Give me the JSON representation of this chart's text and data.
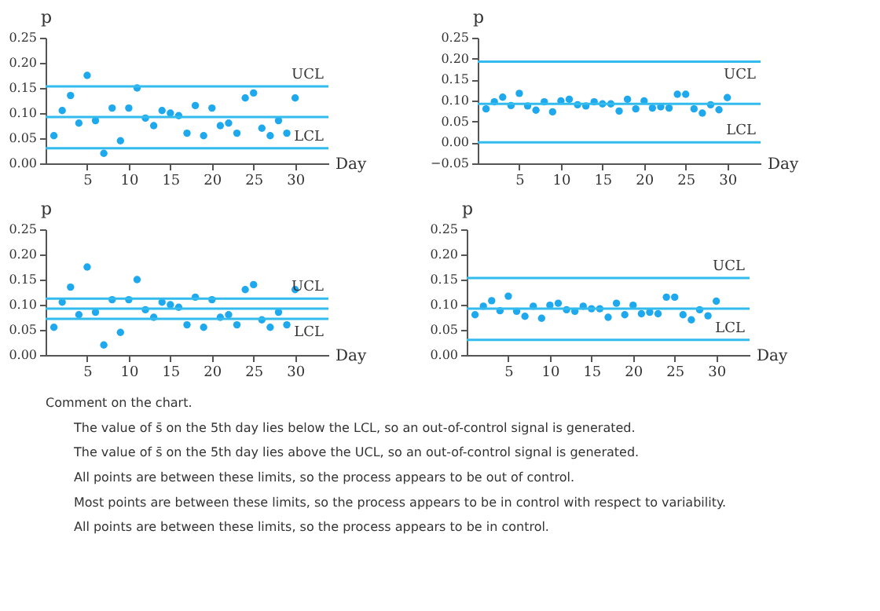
{
  "chart_data": [
    {
      "type": "scatter",
      "xlabel": "Day",
      "ylabel": "p",
      "marker": "circle",
      "grid": false,
      "x": [
        1,
        2,
        3,
        4,
        5,
        6,
        7,
        8,
        9,
        10,
        11,
        12,
        13,
        14,
        15,
        16,
        17,
        18,
        19,
        20,
        21,
        22,
        23,
        24,
        25,
        26,
        27,
        28,
        29,
        30
      ],
      "series": [
        {
          "color": "#1ea8ee",
          "values": [
            0.055,
            0.105,
            0.135,
            0.08,
            0.175,
            0.085,
            0.02,
            0.11,
            0.045,
            0.11,
            0.15,
            0.09,
            0.075,
            0.105,
            0.1,
            0.095,
            0.06,
            0.115,
            0.055,
            0.11,
            0.075,
            0.08,
            0.06,
            0.13,
            0.14,
            0.07,
            0.055,
            0.085,
            0.06,
            0.13
          ]
        }
      ],
      "xlim": [
        0,
        34
      ],
      "xticks": [
        5,
        10,
        15,
        20,
        25,
        30
      ],
      "ylim": [
        0,
        0.25
      ],
      "yticks": [
        {
          "value": 0,
          "label": "0.00"
        },
        {
          "value": 0.05,
          "label": "0.05"
        },
        {
          "value": 0.1,
          "label": "0.10"
        },
        {
          "value": 0.15,
          "label": "0.15"
        },
        {
          "value": 0.2,
          "label": "0.20"
        },
        {
          "value": 0.25,
          "label": "0.25"
        }
      ],
      "ref_lines": [
        {
          "axis": "y",
          "value": 0.153,
          "label": "UCL",
          "color": "#33bbee"
        },
        {
          "axis": "y",
          "value": 0.092,
          "label": null,
          "color": "#33bbee"
        },
        {
          "axis": "y",
          "value": 0.03,
          "label": "LCL",
          "color": "#33bbee"
        }
      ]
    },
    {
      "type": "scatter",
      "xlabel": "Day",
      "ylabel": "p",
      "marker": "circle",
      "grid": false,
      "x": [
        1,
        2,
        3,
        4,
        5,
        6,
        7,
        8,
        9,
        10,
        11,
        12,
        13,
        14,
        15,
        16,
        17,
        18,
        19,
        20,
        21,
        22,
        23,
        24,
        25,
        26,
        27,
        28,
        29,
        30
      ],
      "series": [
        {
          "color": "#1ea8ee",
          "values": [
            0.08,
            0.097,
            0.108,
            0.088,
            0.117,
            0.087,
            0.077,
            0.097,
            0.073,
            0.099,
            0.103,
            0.09,
            0.087,
            0.097,
            0.092,
            0.092,
            0.075,
            0.103,
            0.08,
            0.099,
            0.082,
            0.085,
            0.082,
            0.115,
            0.115,
            0.08,
            0.07,
            0.09,
            0.078,
            0.107
          ]
        }
      ],
      "xlim": [
        0,
        34
      ],
      "xticks": [
        5,
        10,
        15,
        20,
        25,
        30
      ],
      "ylim": [
        -0.05,
        0.25
      ],
      "yticks": [
        {
          "value": -0.05,
          "label": "−0.05"
        },
        {
          "value": 0,
          "label": "0.00"
        },
        {
          "value": 0.05,
          "label": "0.05"
        },
        {
          "value": 0.1,
          "label": "0.10"
        },
        {
          "value": 0.15,
          "label": "0.15"
        },
        {
          "value": 0.2,
          "label": "0.20"
        },
        {
          "value": 0.25,
          "label": "0.25"
        }
      ],
      "ref_lines": [
        {
          "axis": "y",
          "value": 0.193,
          "label": "UCL",
          "color": "#33bbee"
        },
        {
          "axis": "y",
          "value": 0.092,
          "label": null,
          "color": "#33bbee"
        },
        {
          "axis": "y",
          "value": 0.0,
          "label": "LCL",
          "color": "#33bbee"
        }
      ]
    },
    {
      "type": "scatter",
      "xlabel": "Day",
      "ylabel": "p",
      "marker": "circle",
      "grid": false,
      "x": [
        1,
        2,
        3,
        4,
        5,
        6,
        7,
        8,
        9,
        10,
        11,
        12,
        13,
        14,
        15,
        16,
        17,
        18,
        19,
        20,
        21,
        22,
        23,
        24,
        25,
        26,
        27,
        28,
        29,
        30
      ],
      "series": [
        {
          "color": "#1ea8ee",
          "values": [
            0.055,
            0.105,
            0.135,
            0.08,
            0.175,
            0.085,
            0.02,
            0.11,
            0.045,
            0.11,
            0.15,
            0.09,
            0.075,
            0.105,
            0.1,
            0.095,
            0.06,
            0.115,
            0.055,
            0.11,
            0.075,
            0.08,
            0.06,
            0.13,
            0.14,
            0.07,
            0.055,
            0.085,
            0.06,
            0.13
          ]
        }
      ],
      "xlim": [
        0,
        34
      ],
      "xticks": [
        5,
        10,
        15,
        20,
        25,
        30
      ],
      "ylim": [
        0,
        0.25
      ],
      "yticks": [
        {
          "value": 0,
          "label": "0.00"
        },
        {
          "value": 0.05,
          "label": "0.05"
        },
        {
          "value": 0.1,
          "label": "0.10"
        },
        {
          "value": 0.15,
          "label": "0.15"
        },
        {
          "value": 0.2,
          "label": "0.20"
        },
        {
          "value": 0.25,
          "label": "0.25"
        }
      ],
      "ref_lines": [
        {
          "axis": "y",
          "value": 0.112,
          "label": "UCL",
          "color": "#33bbee"
        },
        {
          "axis": "y",
          "value": 0.092,
          "label": null,
          "color": "#33bbee"
        },
        {
          "axis": "y",
          "value": 0.072,
          "label": "LCL",
          "color": "#33bbee"
        }
      ]
    },
    {
      "type": "scatter",
      "xlabel": "Day",
      "ylabel": "p",
      "marker": "circle",
      "grid": false,
      "x": [
        1,
        2,
        3,
        4,
        5,
        6,
        7,
        8,
        9,
        10,
        11,
        12,
        13,
        14,
        15,
        16,
        17,
        18,
        19,
        20,
        21,
        22,
        23,
        24,
        25,
        26,
        27,
        28,
        29,
        30
      ],
      "series": [
        {
          "color": "#1ea8ee",
          "values": [
            0.08,
            0.097,
            0.108,
            0.088,
            0.117,
            0.087,
            0.077,
            0.097,
            0.073,
            0.099,
            0.103,
            0.09,
            0.087,
            0.097,
            0.092,
            0.092,
            0.075,
            0.103,
            0.08,
            0.099,
            0.082,
            0.085,
            0.082,
            0.115,
            0.115,
            0.08,
            0.07,
            0.09,
            0.078,
            0.107
          ]
        }
      ],
      "xlim": [
        0,
        34
      ],
      "xticks": [
        5,
        10,
        15,
        20,
        25,
        30
      ],
      "ylim": [
        0,
        0.25
      ],
      "yticks": [
        {
          "value": 0,
          "label": "0.00"
        },
        {
          "value": 0.05,
          "label": "0.05"
        },
        {
          "value": 0.1,
          "label": "0.10"
        },
        {
          "value": 0.15,
          "label": "0.15"
        },
        {
          "value": 0.2,
          "label": "0.20"
        },
        {
          "value": 0.25,
          "label": "0.25"
        }
      ],
      "ref_lines": [
        {
          "axis": "y",
          "value": 0.153,
          "label": "UCL",
          "color": "#33bbee"
        },
        {
          "axis": "y",
          "value": 0.092,
          "label": null,
          "color": "#33bbee"
        },
        {
          "axis": "y",
          "value": 0.03,
          "label": "LCL",
          "color": "#33bbee"
        }
      ]
    },
    {
      "type": "other",
      "annotations": [
        "Comment on the chart.",
        "The value of s̄ on the 5th day lies below the LCL, so an out-of-control signal is generated.",
        "The value of s̄ on the 5th day lies above the UCL, so an out-of-control signal is generated.",
        "All points are between these limits, so the process appears to be out of control.",
        "Most points are between these limits, so the process appears to be in control with respect to variability.",
        "All points are between these limits, so the process appears to be in control."
      ]
    }
  ]
}
